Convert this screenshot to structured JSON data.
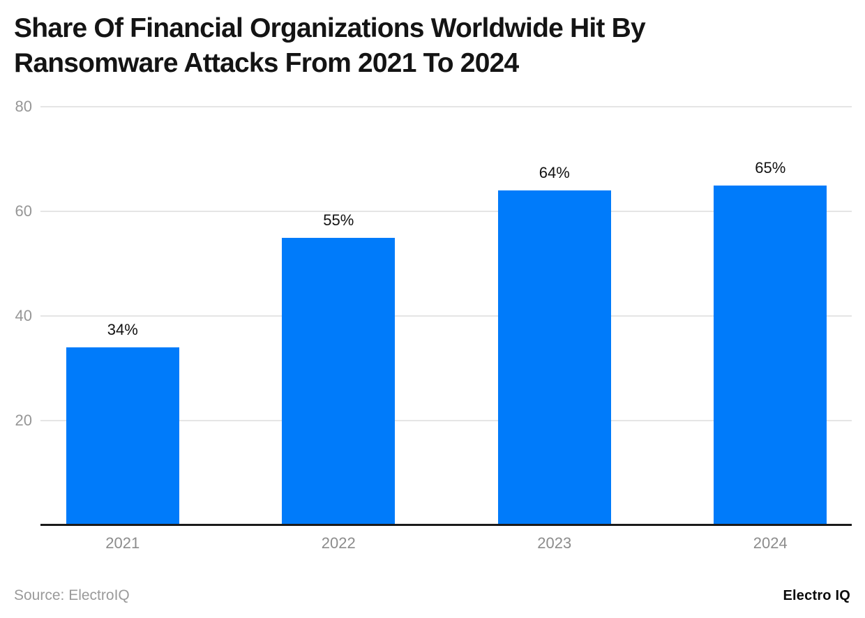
{
  "title_lines": [
    "Share Of Financial Organizations Worldwide Hit By",
    "Ransomware Attacks From 2021 To 2024"
  ],
  "chart_data": {
    "type": "bar",
    "title": "Share Of Financial Organizations Worldwide Hit By Ransomware Attacks From 2021 To 2024",
    "categories": [
      "2021",
      "2022",
      "2023",
      "2024"
    ],
    "values": [
      34,
      55,
      64,
      65
    ],
    "value_labels": [
      "34%",
      "55%",
      "64%",
      "65%"
    ],
    "unit": "%",
    "xlabel": "",
    "ylabel": "",
    "ylim": [
      0,
      80
    ],
    "yticks": [
      20,
      40,
      60,
      80
    ],
    "grid": "horizontal",
    "legend_position": "none"
  },
  "colors": {
    "bar": "#007bfa",
    "gridline": "#e5e5e5",
    "axis_line": "#1b1b1b",
    "tick_label": "#969696",
    "x_label": "#8c8c8c",
    "value_label": "#111111",
    "title": "#141414",
    "source": "#9a9a9a",
    "brand": "#0c0c0c",
    "background": "#ffffff"
  },
  "footer": {
    "source": "Source: ElectroIQ",
    "brand": "Electro IQ"
  }
}
